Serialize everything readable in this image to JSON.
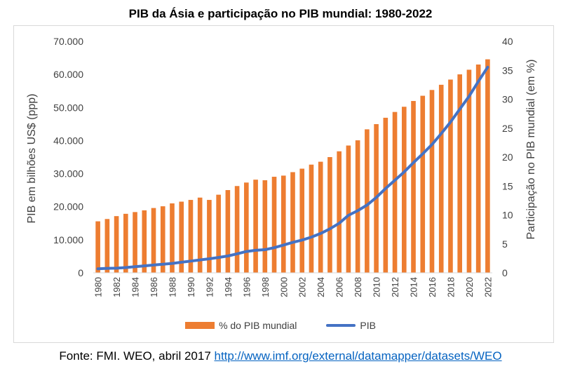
{
  "chart_data": {
    "type": "bar",
    "title": "PIB da Ásia e participação no PIB mundial: 1980-2022",
    "ylabel": "PIB em bilhões US$ (ppp)",
    "y2label": "Participação no PIB mundial (em %)",
    "ylim": [
      0,
      70000
    ],
    "y2lim": [
      0,
      40
    ],
    "yticks": [
      "0",
      "10.000",
      "20.000",
      "30.000",
      "40.000",
      "50.000",
      "60.000",
      "70.000"
    ],
    "y2ticks": [
      "0",
      "5",
      "10",
      "15",
      "20",
      "25",
      "30",
      "35",
      "40"
    ],
    "x": [
      1980,
      1981,
      1982,
      1983,
      1984,
      1985,
      1986,
      1987,
      1988,
      1989,
      1990,
      1991,
      1992,
      1993,
      1994,
      1995,
      1996,
      1997,
      1998,
      1999,
      2000,
      2001,
      2002,
      2003,
      2004,
      2005,
      2006,
      2007,
      2008,
      2009,
      2010,
      2011,
      2012,
      2013,
      2014,
      2015,
      2016,
      2017,
      2018,
      2019,
      2020,
      2021,
      2022
    ],
    "xticks": [
      "1980",
      "1982",
      "1984",
      "1986",
      "1988",
      "1990",
      "1992",
      "1994",
      "1996",
      "1998",
      "2000",
      "2002",
      "2004",
      "2006",
      "2008",
      "2010",
      "2012",
      "2014",
      "2016",
      "2018",
      "2020",
      "2022"
    ],
    "series": [
      {
        "name": "% do PIB mundial",
        "type": "bar",
        "axis": "right",
        "color": "#ed7d31",
        "values": [
          8.9,
          9.3,
          9.8,
          10.2,
          10.5,
          10.8,
          11.2,
          11.5,
          12.0,
          12.3,
          12.6,
          13.0,
          12.6,
          13.5,
          14.3,
          15.0,
          15.6,
          16.1,
          16.0,
          16.6,
          16.8,
          17.4,
          18.0,
          18.7,
          19.2,
          20.0,
          21.0,
          22.0,
          22.9,
          24.8,
          25.7,
          26.8,
          27.8,
          28.7,
          29.7,
          30.6,
          31.6,
          32.5,
          33.4,
          34.3,
          35.1,
          36.0,
          36.9
        ]
      },
      {
        "name": "PIB",
        "type": "line",
        "axis": "left",
        "color": "#4472c4",
        "values": [
          1200,
          1350,
          1400,
          1600,
          1850,
          2100,
          2350,
          2600,
          2850,
          3200,
          3550,
          3900,
          4250,
          4650,
          5100,
          5750,
          6450,
          6800,
          7000,
          7600,
          8400,
          9200,
          9900,
          10800,
          11900,
          13300,
          15000,
          17400,
          18800,
          20500,
          22800,
          25500,
          28000,
          30500,
          33300,
          36000,
          38800,
          42100,
          45600,
          49500,
          53400,
          57900,
          62200
        ]
      }
    ]
  },
  "source": {
    "prefix": "Fonte: FMI. WEO, abril 2017 ",
    "link_text": "http://www.imf.org/external/datamapper/datasets/WEO"
  }
}
